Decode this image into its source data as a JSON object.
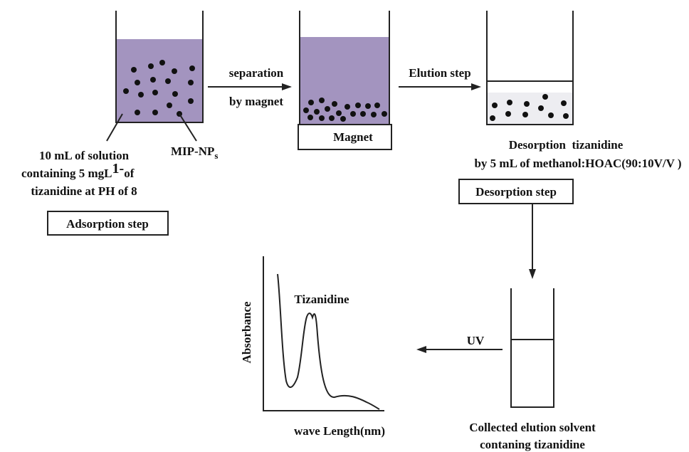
{
  "adsorption": {
    "solution_lines": [
      "10 mL of solution",
      "containing 5 mgL",
      "tizanidine at PH of 8"
    ],
    "unit_superscript": "1-",
    "unit_suffix": "of",
    "particles": "MIP-NP",
    "particles_subscript": "s",
    "step": "Adsorption step"
  },
  "separation": {
    "arrow_lines": [
      "separation",
      "by magnet"
    ],
    "magnet": "Magnet"
  },
  "elution": {
    "arrow_label": "Elution step",
    "desorption_lines": [
      "Desorption  tizanidine",
      "by 5 mL of methanol:HOAC(90:10V/V )"
    ],
    "step": "Desorption step"
  },
  "collection": {
    "lines": [
      "Collected elution solvent",
      "contaning tizanidine"
    ],
    "arrow_label": "UV"
  },
  "spectrum": {
    "peak_label": "Tizanidine",
    "y_label": "Absorbance",
    "x_label": "wave Length(nm)"
  }
}
